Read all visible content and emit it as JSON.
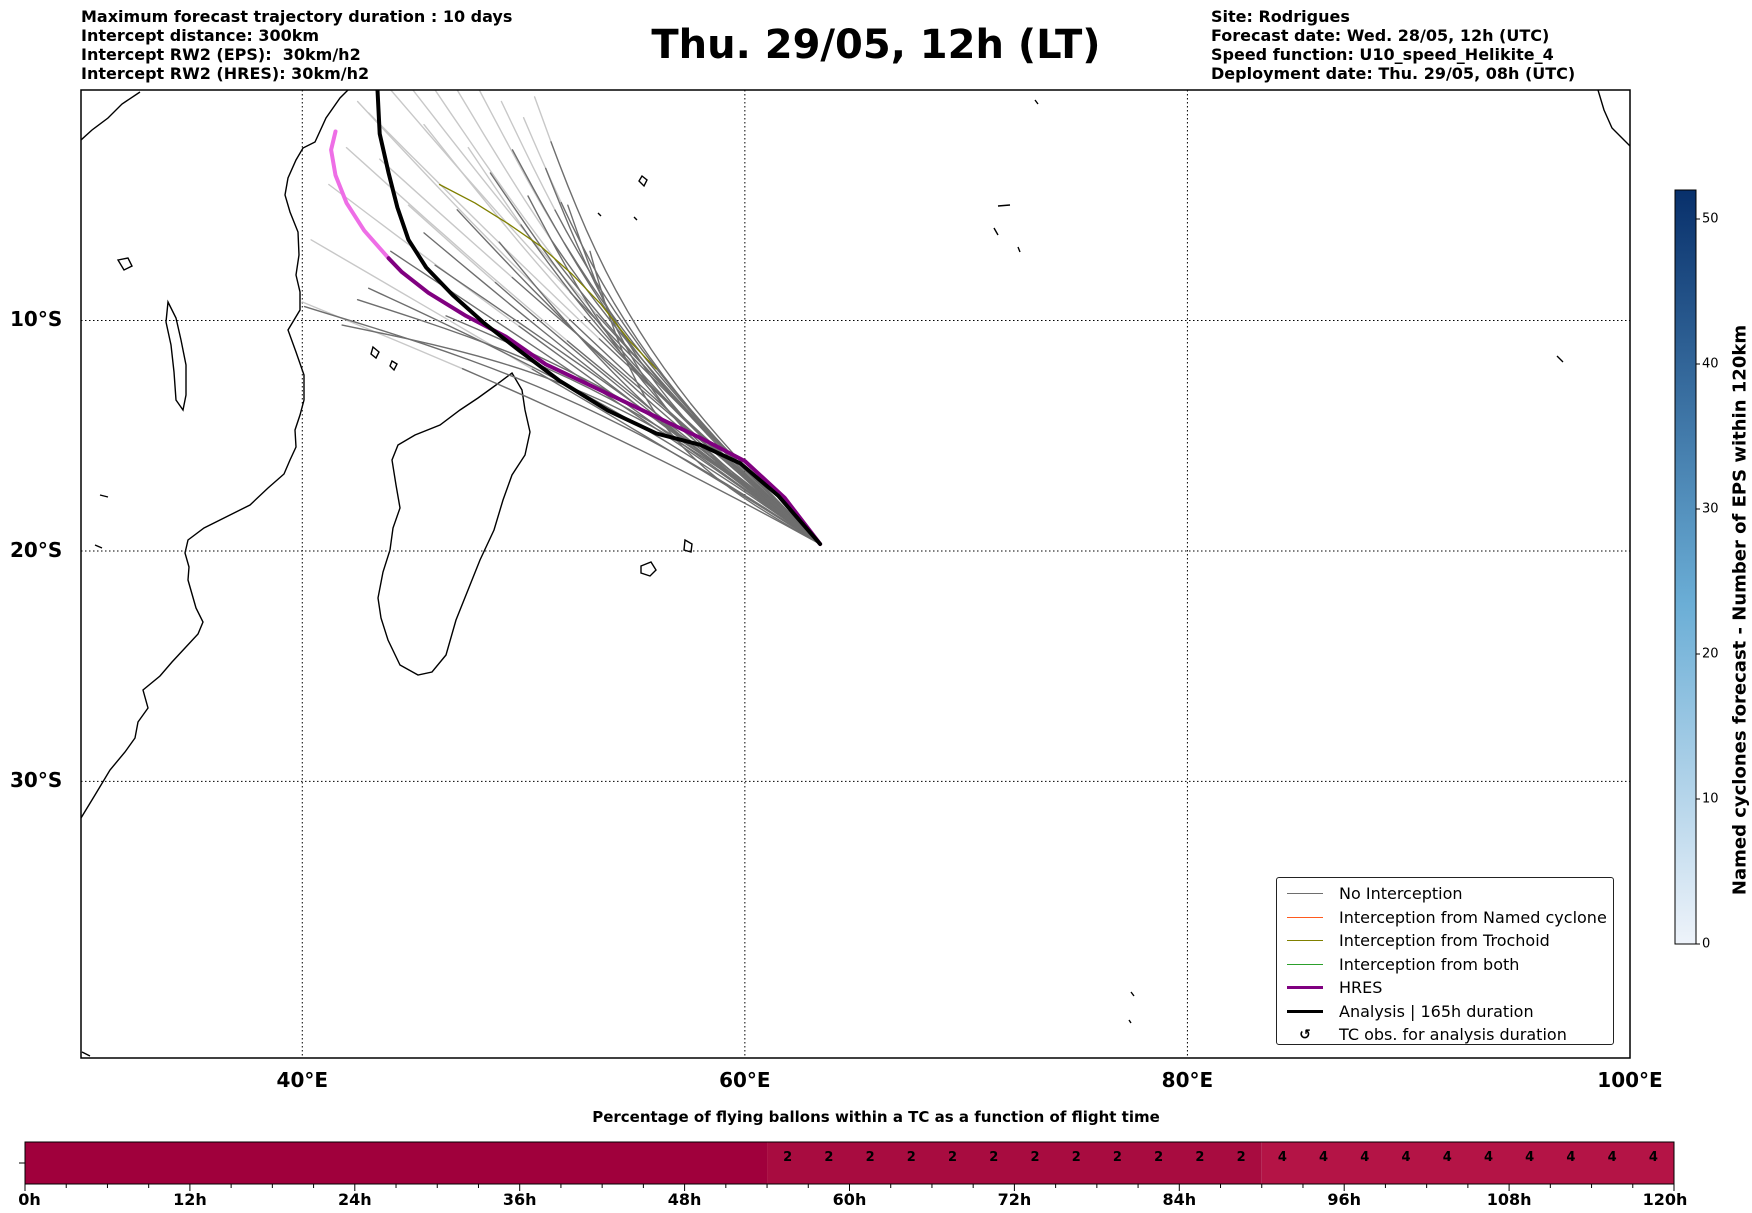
{
  "title": "Thu. 29/05, 12h (LT)",
  "header_left": [
    "Maximum forecast trajectory duration : 10 days",
    "Intercept distance: 300km",
    "Intercept RW2 (EPS):  30km/h2",
    "Intercept RW2 (HRES): 30km/h2"
  ],
  "header_right": [
    "Site: Rodrigues",
    "Forecast date: Wed. 28/05, 12h (UTC)",
    "Speed function: U10_speed_Helikite_4",
    "Deployment date: Thu. 29/05, 08h (UTC)"
  ],
  "map": {
    "lon_range": [
      30,
      100
    ],
    "lat_range": [
      -42,
      0
    ],
    "lon_ticks": [
      {
        "value": 40,
        "label": "40°E"
      },
      {
        "value": 60,
        "label": "60°E"
      },
      {
        "value": 80,
        "label": "80°E"
      },
      {
        "value": 100,
        "label": "100°E"
      }
    ],
    "lat_ticks": [
      {
        "value": -10,
        "label": "10°S"
      },
      {
        "value": -20,
        "label": "20°S"
      },
      {
        "value": -30,
        "label": "30°S"
      }
    ],
    "origin": {
      "lon": 63.4,
      "lat": -19.7
    },
    "colors": {
      "no_interception": "#6e6e6e",
      "faded": "#c8c8c8",
      "named_cyclone": "#ff5a1e",
      "trochoid": "#808000",
      "both": "#2ca02c",
      "hres": "#800080",
      "hres_light": "#ee6ee6",
      "analysis": "#000000"
    },
    "analysis_track": [
      [
        63.4,
        -19.7
      ],
      [
        61.5,
        -17.6
      ],
      [
        59.8,
        -16.2
      ],
      [
        58.0,
        -15.4
      ],
      [
        56.0,
        -14.9
      ],
      [
        53.8,
        -13.9
      ],
      [
        51.6,
        -12.6
      ],
      [
        49.8,
        -11.3
      ],
      [
        48.2,
        -10.1
      ],
      [
        46.8,
        -8.9
      ],
      [
        45.6,
        -7.7
      ],
      [
        44.8,
        -6.5
      ],
      [
        44.3,
        -5.1
      ],
      [
        43.9,
        -3.6
      ],
      [
        43.5,
        -1.9
      ],
      [
        43.4,
        0.0
      ]
    ],
    "hres_track": [
      [
        63.4,
        -19.7
      ],
      [
        61.8,
        -17.7
      ],
      [
        60.0,
        -16.1
      ],
      [
        58.0,
        -15.1
      ],
      [
        55.6,
        -14.0
      ],
      [
        53.2,
        -12.9
      ],
      [
        51.0,
        -11.9
      ],
      [
        49.2,
        -10.7
      ],
      [
        47.4,
        -9.8
      ],
      [
        45.7,
        -8.8
      ],
      [
        44.5,
        -7.9
      ],
      [
        43.9,
        -7.3
      ]
    ],
    "hres_light_track": [
      [
        43.9,
        -7.3
      ],
      [
        42.8,
        -6.1
      ],
      [
        42.0,
        -4.9
      ],
      [
        41.5,
        -3.7
      ],
      [
        41.3,
        -2.6
      ],
      [
        41.5,
        -1.8
      ]
    ],
    "trochoid_track": [
      [
        56.0,
        -12.1
      ],
      [
        54.8,
        -10.9
      ],
      [
        53.5,
        -9.3
      ],
      [
        52.2,
        -8.0
      ],
      [
        50.8,
        -6.8
      ],
      [
        49.3,
        -5.8
      ],
      [
        47.8,
        -4.9
      ],
      [
        46.2,
        -4.1
      ]
    ],
    "ensemble_tracks": [
      {
        "end": [
          41.2,
          -4.1
        ],
        "mid_dev": 0.4,
        "faded_from": 0.62
      },
      {
        "end": [
          40.0,
          -9.2
        ],
        "mid_dev": -0.1,
        "faded_from": 0.7
      },
      {
        "end": [
          40.4,
          -6.5
        ],
        "mid_dev": 0.2,
        "faded_from": 0.6
      },
      {
        "end": [
          42.0,
          -2.5
        ],
        "mid_dev": 0.6,
        "faded_from": 0.55
      },
      {
        "end": [
          42.5,
          -0.5
        ],
        "mid_dev": 0.8,
        "faded_from": 0.55
      },
      {
        "end": [
          43.0,
          -1.0
        ],
        "mid_dev": 0.5,
        "faded_from": 0.5
      },
      {
        "end": [
          44.0,
          0.0
        ],
        "mid_dev": 0.7,
        "faded_from": 0.6
      },
      {
        "end": [
          45.0,
          0.0
        ],
        "mid_dev": 0.9,
        "faded_from": 0.55
      },
      {
        "end": [
          45.5,
          -1.5
        ],
        "mid_dev": 1.0,
        "faded_from": 0.6
      },
      {
        "end": [
          46.0,
          0.0
        ],
        "mid_dev": 1.2,
        "faded_from": 0.65
      },
      {
        "end": [
          47.0,
          0.0
        ],
        "mid_dev": 1.4,
        "faded_from": 0.7
      },
      {
        "end": [
          48.0,
          0.0
        ],
        "mid_dev": 1.6,
        "faded_from": 0.7
      },
      {
        "end": [
          49.0,
          -0.5
        ],
        "mid_dev": 1.7,
        "faded_from": 0.8
      },
      {
        "end": [
          50.0,
          -1.2
        ],
        "mid_dev": 1.8,
        "faded_from": 0.85
      },
      {
        "end": [
          50.5,
          -0.3
        ],
        "mid_dev": 2.0,
        "faded_from": 0.9
      },
      {
        "end": [
          49.5,
          -2.6
        ],
        "mid_dev": 1.5,
        "faded_from": 1.0
      },
      {
        "end": [
          48.5,
          -3.6
        ],
        "mid_dev": 1.2,
        "faded_from": 1.0
      },
      {
        "end": [
          47.0,
          -5.2
        ],
        "mid_dev": 0.8,
        "faded_from": 1.0
      },
      {
        "end": [
          45.5,
          -6.2
        ],
        "mid_dev": 0.5,
        "faded_from": 1.0
      },
      {
        "end": [
          44.0,
          -7.0
        ],
        "mid_dev": 0.2,
        "faded_from": 1.0
      },
      {
        "end": [
          43.0,
          -8.6
        ],
        "mid_dev": -0.3,
        "faded_from": 1.0
      },
      {
        "end": [
          40.1,
          -9.4
        ],
        "mid_dev": -0.8,
        "faded_from": 1.0
      },
      {
        "end": [
          41.8,
          -10.2
        ],
        "mid_dev": -1.4,
        "faded_from": 1.0
      },
      {
        "end": [
          42.5,
          -9.1
        ],
        "mid_dev": -1.0,
        "faded_from": 1.0
      },
      {
        "end": [
          46.5,
          -9.8
        ],
        "mid_dev": -0.6,
        "faded_from": 1.0
      },
      {
        "end": [
          46.0,
          -7.6
        ],
        "mid_dev": 0.1,
        "faded_from": 1.0
      },
      {
        "end": [
          44.8,
          -5.0
        ],
        "mid_dev": 0.6,
        "faded_from": 0.8
      },
      {
        "end": [
          43.5,
          -3.0
        ],
        "mid_dev": 0.4,
        "faded_from": 0.7
      },
      {
        "end": [
          47.5,
          -2.5
        ],
        "mid_dev": 1.3,
        "faded_from": 0.85
      },
      {
        "end": [
          51.0,
          -3.4
        ],
        "mid_dev": 2.0,
        "faded_from": 1.0
      },
      {
        "end": [
          52.0,
          -5.0
        ],
        "mid_dev": 2.2,
        "faded_from": 1.0
      },
      {
        "end": [
          50.2,
          -4.6
        ],
        "mid_dev": 1.7,
        "faded_from": 1.0
      },
      {
        "end": [
          48.9,
          -6.6
        ],
        "mid_dev": 1.1,
        "faded_from": 1.0
      },
      {
        "end": [
          53.0,
          -7.0
        ],
        "mid_dev": 2.5,
        "faded_from": 1.0
      }
    ]
  },
  "legend": {
    "items": [
      {
        "label": "No Interception",
        "kind": "line",
        "color": "#6e6e6e",
        "width": 1
      },
      {
        "label": "Interception from Named cyclone",
        "kind": "line",
        "color": "#ff5a1e",
        "width": 1
      },
      {
        "label": "Interception from Trochoid",
        "kind": "line",
        "color": "#808000",
        "width": 1
      },
      {
        "label": "Interception from both",
        "kind": "line",
        "color": "#2ca02c",
        "width": 1
      },
      {
        "label": "HRES",
        "kind": "line",
        "color": "#800080",
        "width": 3
      },
      {
        "label": "Analysis | 165h duration",
        "kind": "line",
        "color": "#000000",
        "width": 3
      },
      {
        "label": "TC obs. for analysis duration",
        "kind": "symbol",
        "symbol": "↺",
        "color": "#000000"
      }
    ]
  },
  "colorbar": {
    "label": "Named cyclones forecast - Number of EPS within 120km",
    "min": 0,
    "max": 52,
    "ticks": [
      {
        "value": 0,
        "label": "0"
      },
      {
        "value": 10,
        "label": "10"
      },
      {
        "value": 20,
        "label": "20"
      },
      {
        "value": 30,
        "label": "30"
      },
      {
        "value": 40,
        "label": "40"
      },
      {
        "value": 50,
        "label": "50"
      }
    ],
    "color_low": "#eef3fa",
    "color_high": "#08306b"
  },
  "percent_bar": {
    "title": "Percentage of flying ballons within a TC as a function of flight time",
    "range": [
      0,
      120
    ],
    "minor_step": 3,
    "segments": [
      {
        "from": 0,
        "to": 54,
        "value": null,
        "color": "#a0003c"
      },
      {
        "from": 54,
        "to": 90,
        "value": 2,
        "step": 3,
        "color": "#a80c40"
      },
      {
        "from": 90,
        "to": 120,
        "value": 4,
        "step": 3,
        "color": "#b41446"
      }
    ],
    "ticks": [
      {
        "value": 0,
        "label": "0h"
      },
      {
        "value": 12,
        "label": "12h"
      },
      {
        "value": 24,
        "label": "24h"
      },
      {
        "value": 36,
        "label": "36h"
      },
      {
        "value": 48,
        "label": "48h"
      },
      {
        "value": 60,
        "label": "60h"
      },
      {
        "value": 72,
        "label": "72h"
      },
      {
        "value": 84,
        "label": "84h"
      },
      {
        "value": 96,
        "label": "96h"
      },
      {
        "value": 108,
        "label": "108h"
      },
      {
        "value": 120,
        "label": "120h"
      }
    ]
  }
}
